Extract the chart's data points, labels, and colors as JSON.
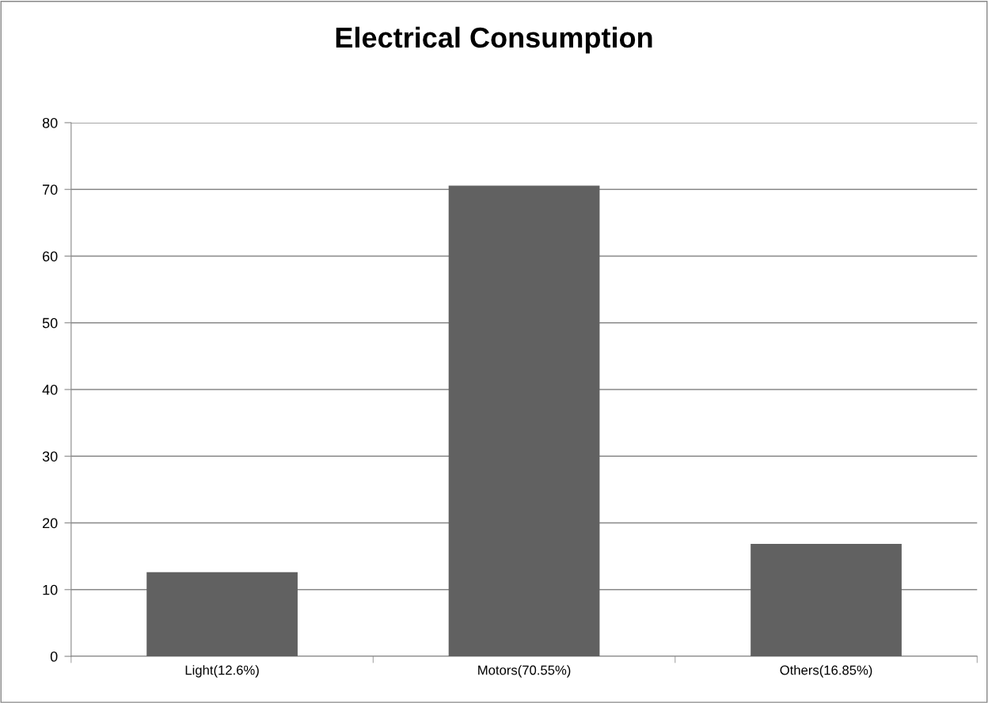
{
  "chart_data": {
    "type": "bar",
    "title": "Electrical Consumption",
    "categories": [
      "Light(12.6%)",
      "Motors(70.55%)",
      "Others(16.85%)"
    ],
    "values": [
      12.6,
      70.55,
      16.85
    ],
    "color": "#616161",
    "ylim": [
      0,
      80
    ],
    "yticks": [
      0,
      10,
      20,
      30,
      40,
      50,
      60,
      70,
      80
    ],
    "grid": "y",
    "legend": false
  }
}
